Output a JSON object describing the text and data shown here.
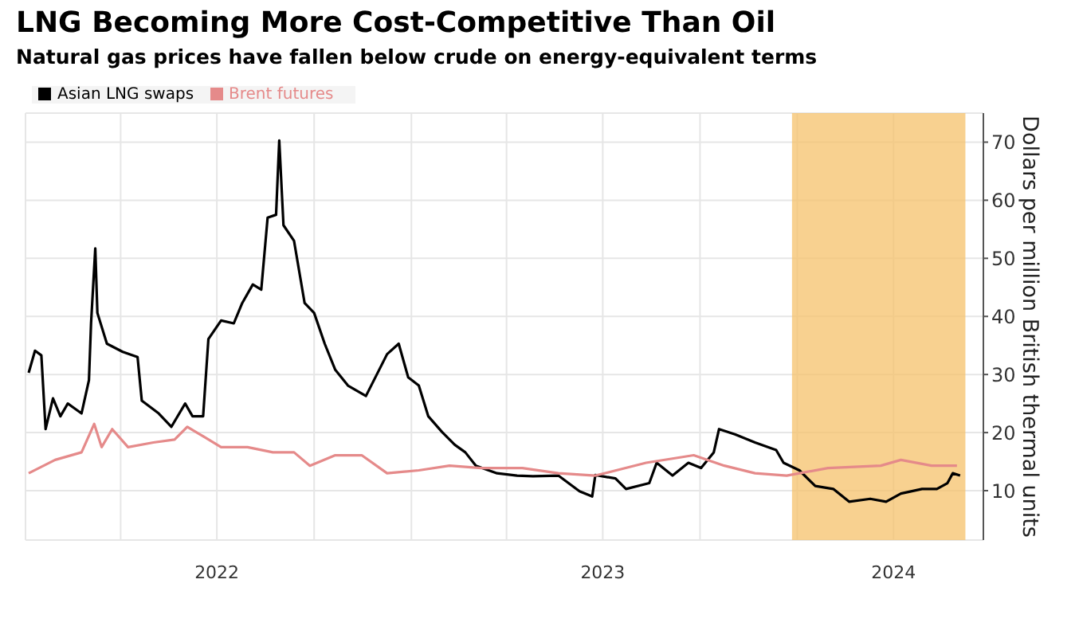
{
  "chart_data": {
    "type": "line",
    "title": "LNG Becoming More Cost-Competitive Than Oil",
    "subtitle": "Natural gas prices have fallen below crude on energy-equivalent terms",
    "ylabel": "Dollars per million British thermal units",
    "xlim": [
      "2022-01-01",
      "2024-06-25"
    ],
    "xticks": [
      {
        "value": "2022-01-01",
        "label": null
      },
      {
        "value": "2022-04-01",
        "label": null
      },
      {
        "value": "2022-07-01",
        "label": "2022"
      },
      {
        "value": "2022-10-01",
        "label": null
      },
      {
        "value": "2023-01-01",
        "label": null
      },
      {
        "value": "2023-04-01",
        "label": null
      },
      {
        "value": "2023-07-01",
        "label": "2023"
      },
      {
        "value": "2023-10-01",
        "label": null
      },
      {
        "value": "2024-01-01",
        "label": null
      },
      {
        "value": "2024-04-01",
        "label": "2024"
      }
    ],
    "ylim": [
      1.5,
      75
    ],
    "yticks": [
      10,
      20,
      30,
      40,
      50,
      60,
      70
    ],
    "grid": true,
    "legend": "top left",
    "bands": [
      {
        "axis": "x",
        "from": "2023-12-27",
        "to": "2024-06-08",
        "color": "#f5c26b"
      }
    ],
    "series": [
      {
        "name": "Asian LNG swaps",
        "color": "#000000",
        "x": [
          "2022-01-04",
          "2022-01-10",
          "2022-01-16",
          "2022-01-20",
          "2022-01-27",
          "2022-02-03",
          "2022-02-10",
          "2022-02-23",
          "2022-03-02",
          "2022-03-04",
          "2022-03-08",
          "2022-03-10",
          "2022-03-19",
          "2022-04-03",
          "2022-04-17",
          "2022-04-21",
          "2022-05-07",
          "2022-05-19",
          "2022-06-01",
          "2022-06-08",
          "2022-06-18",
          "2022-06-23",
          "2022-07-05",
          "2022-07-17",
          "2022-07-25",
          "2022-08-04",
          "2022-08-12",
          "2022-08-18",
          "2022-08-26",
          "2022-08-29",
          "2022-09-02",
          "2022-09-12",
          "2022-09-22",
          "2022-10-01",
          "2022-10-11",
          "2022-10-21",
          "2022-11-02",
          "2022-11-19",
          "2022-11-29",
          "2022-12-09",
          "2022-12-20",
          "2022-12-29",
          "2023-01-08",
          "2023-01-17",
          "2023-01-30",
          "2023-02-11",
          "2023-02-21",
          "2023-03-03",
          "2023-03-23",
          "2023-04-11",
          "2023-04-26",
          "2023-05-20",
          "2023-06-09",
          "2023-06-21",
          "2023-06-24",
          "2023-07-13",
          "2023-07-23",
          "2023-08-14",
          "2023-08-21",
          "2023-09-05",
          "2023-09-20",
          "2023-10-02",
          "2023-10-14",
          "2023-10-19",
          "2023-11-03",
          "2023-11-22",
          "2023-12-12",
          "2023-12-19",
          "2024-01-03",
          "2024-01-18",
          "2024-02-04",
          "2024-02-19",
          "2024-03-10",
          "2024-03-25",
          "2024-04-08",
          "2024-04-28",
          "2024-05-12",
          "2024-05-22",
          "2024-05-27",
          "2024-06-03"
        ],
        "values": [
          30.3,
          34.1,
          33.3,
          20.6,
          25.9,
          22.8,
          25,
          23.3,
          29,
          38.8,
          51.7,
          40.6,
          35.3,
          33.9,
          33,
          25.5,
          23.3,
          21,
          25,
          22.8,
          22.8,
          36.1,
          39.3,
          38.8,
          42.3,
          45.5,
          44.6,
          57,
          57.5,
          70.3,
          55.7,
          53,
          42.3,
          40.6,
          35.3,
          30.8,
          28.1,
          26.3,
          29.9,
          33.5,
          35.3,
          29.5,
          28.1,
          22.8,
          20.1,
          17.9,
          16.6,
          14.3,
          13,
          12.6,
          12.5,
          12.6,
          9.9,
          9,
          12.7,
          12.1,
          10.3,
          11.3,
          14.8,
          12.6,
          14.8,
          13.9,
          16.6,
          20.6,
          19.7,
          18.3,
          17,
          14.8,
          13.5,
          10.8,
          10.3,
          8.1,
          8.6,
          8.1,
          9.5,
          10.3,
          10.3,
          11.3,
          13,
          12.6
        ]
      },
      {
        "name": "Brent futures",
        "color": "#e58a8a",
        "x": [
          "2022-01-04",
          "2022-01-29",
          "2022-02-23",
          "2022-03-07",
          "2022-03-14",
          "2022-03-24",
          "2022-04-08",
          "2022-05-02",
          "2022-05-22",
          "2022-06-03",
          "2022-06-15",
          "2022-07-05",
          "2022-07-30",
          "2022-08-23",
          "2022-09-12",
          "2022-09-27",
          "2022-10-21",
          "2022-11-15",
          "2022-12-09",
          "2023-01-08",
          "2023-02-06",
          "2023-03-08",
          "2023-04-16",
          "2023-05-20",
          "2023-06-24",
          "2023-08-11",
          "2023-09-25",
          "2023-10-24",
          "2023-11-22",
          "2023-12-22",
          "2024-01-30",
          "2024-03-20",
          "2024-04-08",
          "2024-05-07",
          "2024-05-31"
        ],
        "values": [
          13,
          15.3,
          16.6,
          21.5,
          17.5,
          20.6,
          17.5,
          18.3,
          18.8,
          21,
          19.7,
          17.5,
          17.5,
          16.6,
          16.6,
          14.3,
          16.1,
          16.1,
          13,
          13.5,
          14.3,
          13.9,
          13.9,
          13,
          12.6,
          14.8,
          16.1,
          14.3,
          13,
          12.6,
          13.9,
          14.3,
          15.3,
          14.3,
          14.3
        ]
      }
    ]
  }
}
